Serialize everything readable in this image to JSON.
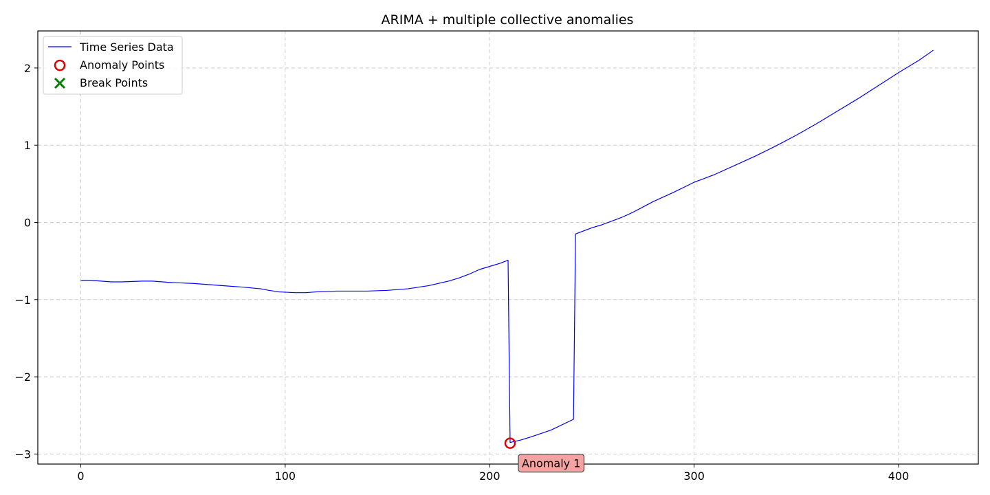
{
  "chart_data": {
    "type": "line",
    "title": "ARIMA + multiple collective anomalies",
    "xlabel": "",
    "ylabel": "",
    "xlim": [
      -21,
      439
    ],
    "ylim": [
      -3.13,
      2.48
    ],
    "x_ticks": [
      0,
      100,
      200,
      300,
      400
    ],
    "y_ticks": [
      -3,
      -2,
      -1,
      0,
      1,
      2
    ],
    "x_tick_labels": [
      "0",
      "100",
      "200",
      "300",
      "400"
    ],
    "y_tick_labels": [
      "−3",
      "−2",
      "−1",
      "0",
      "1",
      "2"
    ],
    "grid": true,
    "legend_position": "upper-left",
    "colors": {
      "line": "#0000ff",
      "anomaly": "#e00000",
      "break": "#007f00",
      "annotation_fill": "#f4a3a3",
      "annotation_border": "#444444"
    },
    "series": [
      {
        "name": "Time Series Data",
        "points": [
          [
            0,
            -0.75
          ],
          [
            5,
            -0.75
          ],
          [
            10,
            -0.76
          ],
          [
            15,
            -0.77
          ],
          [
            20,
            -0.77
          ],
          [
            30,
            -0.76
          ],
          [
            35,
            -0.76
          ],
          [
            45,
            -0.78
          ],
          [
            55,
            -0.79
          ],
          [
            60,
            -0.8
          ],
          [
            70,
            -0.82
          ],
          [
            80,
            -0.84
          ],
          [
            88,
            -0.86
          ],
          [
            92,
            -0.88
          ],
          [
            97,
            -0.9
          ],
          [
            105,
            -0.91
          ],
          [
            110,
            -0.91
          ],
          [
            115,
            -0.9
          ],
          [
            125,
            -0.89
          ],
          [
            140,
            -0.89
          ],
          [
            150,
            -0.88
          ],
          [
            160,
            -0.86
          ],
          [
            170,
            -0.82
          ],
          [
            180,
            -0.76
          ],
          [
            185,
            -0.72
          ],
          [
            190,
            -0.67
          ],
          [
            195,
            -0.61
          ],
          [
            200,
            -0.57
          ],
          [
            205,
            -0.53
          ],
          [
            209,
            -0.49
          ],
          [
            210,
            -2.85
          ],
          [
            215,
            -2.82
          ],
          [
            220,
            -2.78
          ],
          [
            230,
            -2.69
          ],
          [
            241,
            -2.55
          ],
          [
            242,
            -0.15
          ],
          [
            250,
            -0.07
          ],
          [
            255,
            -0.03
          ],
          [
            260,
            0.02
          ],
          [
            265,
            0.07
          ],
          [
            270,
            0.13
          ],
          [
            275,
            0.2
          ],
          [
            280,
            0.27
          ],
          [
            290,
            0.39
          ],
          [
            300,
            0.52
          ],
          [
            310,
            0.62
          ],
          [
            320,
            0.74
          ],
          [
            330,
            0.86
          ],
          [
            340,
            0.99
          ],
          [
            350,
            1.13
          ],
          [
            360,
            1.28
          ],
          [
            370,
            1.44
          ],
          [
            380,
            1.6
          ],
          [
            390,
            1.77
          ],
          [
            400,
            1.94
          ],
          [
            410,
            2.1
          ],
          [
            417,
            2.23
          ]
        ]
      },
      {
        "name": "Anomaly Points",
        "points": [
          [
            210,
            -2.86
          ]
        ]
      },
      {
        "name": "Break Points",
        "points": []
      }
    ],
    "annotations": [
      {
        "text": "Anomaly 1",
        "x": 210,
        "y": -2.86
      }
    ]
  }
}
